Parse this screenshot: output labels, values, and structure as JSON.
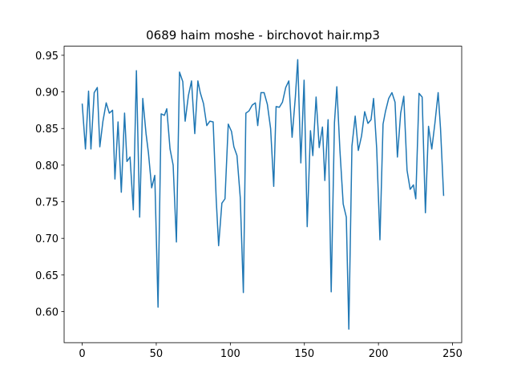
{
  "chart_data": {
    "type": "line",
    "title": "0689 haim moshe - birchovot hair.mp3",
    "x": [
      0,
      2.2,
      4.3,
      5.9,
      8.1,
      10.2,
      11.9,
      14.0,
      16.2,
      18.3,
      20.5,
      22.1,
      24.2,
      26.4,
      28.6,
      30.2,
      32.3,
      34.5,
      36.6,
      38.8,
      40.9,
      43.1,
      44.7,
      46.9,
      49.0,
      51.2,
      53.3,
      55.5,
      57.1,
      59.3,
      61.4,
      63.6,
      65.7,
      67.9,
      69.5,
      71.7,
      73.8,
      76.0,
      78.1,
      79.7,
      81.9,
      84.1,
      86.2,
      88.4,
      90.5,
      92.1,
      94.3,
      96.4,
      98.6,
      100.8,
      102.4,
      104.5,
      106.7,
      108.8,
      110.5,
      112.6,
      114.8,
      116.9,
      118.5,
      120.7,
      122.8,
      125.0,
      127.2,
      129.3,
      130.9,
      133.1,
      135.2,
      137.4,
      139.5,
      141.7,
      143.9,
      145.5,
      147.6,
      149.8,
      151.9,
      154.1,
      155.7,
      157.9,
      160.0,
      162.2,
      163.8,
      166.0,
      168.1,
      170.3,
      171.9,
      174.0,
      176.2,
      178.3,
      180.0,
      182.1,
      184.3,
      186.4,
      188.6,
      190.7,
      192.9,
      195.0,
      196.7,
      198.8,
      201.0,
      203.1,
      204.7,
      206.9,
      209.1,
      211.2,
      212.8,
      215.0,
      217.1,
      219.3,
      221.4,
      223.6,
      225.2,
      227.4,
      229.5,
      231.7,
      233.8,
      236.0,
      238.1,
      240.3,
      241.9,
      244.0
    ],
    "series": [
      {
        "color": "#1f77b4",
        "values": [
          0.884,
          0.822,
          0.901,
          0.822,
          0.899,
          0.906,
          0.825,
          0.86,
          0.885,
          0.871,
          0.875,
          0.781,
          0.859,
          0.763,
          0.871,
          0.805,
          0.811,
          0.739,
          0.929,
          0.729,
          0.891,
          0.843,
          0.817,
          0.769,
          0.786,
          0.606,
          0.87,
          0.868,
          0.877,
          0.822,
          0.8,
          0.695,
          0.927,
          0.914,
          0.86,
          0.895,
          0.915,
          0.843,
          0.915,
          0.899,
          0.884,
          0.854,
          0.86,
          0.859,
          0.752,
          0.69,
          0.748,
          0.754,
          0.856,
          0.846,
          0.825,
          0.813,
          0.756,
          0.626,
          0.871,
          0.874,
          0.882,
          0.885,
          0.854,
          0.899,
          0.899,
          0.883,
          0.85,
          0.771,
          0.88,
          0.879,
          0.886,
          0.906,
          0.915,
          0.838,
          0.893,
          0.944,
          0.803,
          0.916,
          0.716,
          0.847,
          0.813,
          0.893,
          0.824,
          0.852,
          0.779,
          0.862,
          0.627,
          0.858,
          0.907,
          0.82,
          0.747,
          0.729,
          0.576,
          0.826,
          0.867,
          0.82,
          0.84,
          0.873,
          0.857,
          0.862,
          0.891,
          0.823,
          0.698,
          0.856,
          0.873,
          0.891,
          0.899,
          0.886,
          0.811,
          0.871,
          0.894,
          0.793,
          0.767,
          0.773,
          0.754,
          0.898,
          0.893,
          0.735,
          0.853,
          0.822,
          0.857,
          0.899,
          0.85,
          0.758
        ]
      }
    ],
    "xlim": [
      -12.2,
      256.2
    ],
    "ylim": [
      0.5576,
      0.9624
    ],
    "xticks": [
      0,
      50,
      100,
      150,
      200,
      250
    ],
    "yticks": [
      {
        "value": 0.6,
        "label": "0.60"
      },
      {
        "value": 0.65,
        "label": "0.65"
      },
      {
        "value": 0.7,
        "label": "0.70"
      },
      {
        "value": 0.75,
        "label": "0.75"
      },
      {
        "value": 0.8,
        "label": "0.80"
      },
      {
        "value": 0.85,
        "label": "0.85"
      },
      {
        "value": 0.9,
        "label": "0.90"
      },
      {
        "value": 0.95,
        "label": "0.95"
      }
    ]
  }
}
